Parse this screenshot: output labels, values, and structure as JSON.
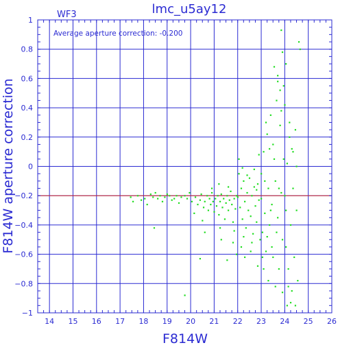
{
  "chart_data": {
    "type": "scatter",
    "title": "lmc_u5ay12",
    "corner_label": "WF3",
    "annotation": "Average aperture correction: -0.200",
    "xlabel": "F814W",
    "ylabel": "F814W aperture correction",
    "xlim": [
      13.5,
      26
    ],
    "ylim": [
      -1,
      1
    ],
    "x_ticks": [
      14,
      15,
      16,
      17,
      18,
      19,
      20,
      21,
      22,
      23,
      24,
      25,
      26
    ],
    "y_ticks": [
      -1,
      -0.8,
      -0.6,
      -0.4,
      -0.2,
      0,
      0.2,
      0.4,
      0.6,
      0.8,
      1
    ],
    "x_tick_labels": [
      "14",
      "15",
      "16",
      "17",
      "18",
      "19",
      "20",
      "21",
      "22",
      "23",
      "24",
      "25",
      "26"
    ],
    "y_tick_labels": [
      "−1",
      "−0.8",
      "−0.6",
      "−0.4",
      "−0.2",
      "0",
      "0.2",
      "0.4",
      "0.6",
      "0.8",
      "1"
    ],
    "grid": true,
    "reference_line": {
      "y": -0.2,
      "color": "#d22a2a"
    },
    "colors": {
      "axis": "#2a2ad2",
      "points": "#22dd22",
      "reference": "#d22a2a"
    },
    "series": [
      {
        "points": [
          [
            17.45,
            -0.21
          ],
          [
            17.55,
            -0.24
          ],
          [
            17.75,
            -0.2
          ],
          [
            17.9,
            -0.23
          ],
          [
            18.05,
            -0.22
          ],
          [
            18.15,
            -0.26
          ],
          [
            18.3,
            -0.19
          ],
          [
            18.4,
            -0.21
          ],
          [
            18.5,
            -0.18
          ],
          [
            18.6,
            -0.22
          ],
          [
            18.7,
            -0.2
          ],
          [
            18.8,
            -0.24
          ],
          [
            18.9,
            -0.21
          ],
          [
            19.0,
            -0.19
          ],
          [
            19.1,
            -0.2
          ],
          [
            19.2,
            -0.23
          ],
          [
            19.3,
            -0.22
          ],
          [
            19.4,
            -0.2
          ],
          [
            19.5,
            -0.25
          ],
          [
            19.6,
            -0.21
          ],
          [
            19.75,
            -0.2
          ],
          [
            19.85,
            -0.22
          ],
          [
            19.95,
            -0.18
          ],
          [
            20.05,
            -0.24
          ],
          [
            18.45,
            -0.42
          ],
          [
            19.75,
            -0.88
          ],
          [
            20.2,
            -0.21
          ],
          [
            20.3,
            -0.26
          ],
          [
            20.4,
            -0.23
          ],
          [
            20.45,
            -0.19
          ],
          [
            20.55,
            -0.28
          ],
          [
            20.6,
            -0.24
          ],
          [
            20.7,
            -0.2
          ],
          [
            20.75,
            -0.3
          ],
          [
            20.8,
            -0.22
          ],
          [
            20.85,
            -0.26
          ],
          [
            20.9,
            -0.18
          ],
          [
            20.95,
            -0.24
          ],
          [
            21.0,
            -0.31
          ],
          [
            21.05,
            -0.22
          ],
          [
            21.1,
            -0.27
          ],
          [
            21.15,
            -0.2
          ],
          [
            21.2,
            -0.33
          ],
          [
            21.25,
            -0.24
          ],
          [
            21.3,
            -0.19
          ],
          [
            21.35,
            -0.28
          ],
          [
            21.4,
            -0.22
          ],
          [
            21.45,
            -0.36
          ],
          [
            21.5,
            -0.25
          ],
          [
            21.55,
            -0.2
          ],
          [
            21.6,
            -0.3
          ],
          [
            21.65,
            -0.23
          ],
          [
            21.7,
            -0.17
          ],
          [
            21.75,
            -0.26
          ],
          [
            21.8,
            -0.38
          ],
          [
            21.85,
            -0.22
          ],
          [
            21.9,
            -0.29
          ],
          [
            21.95,
            -0.2
          ],
          [
            20.5,
            -0.37
          ],
          [
            20.6,
            -0.45
          ],
          [
            20.4,
            -0.63
          ],
          [
            20.15,
            -0.32
          ],
          [
            21.3,
            -0.5
          ],
          [
            21.8,
            -0.52
          ],
          [
            21.55,
            -0.64
          ],
          [
            21.25,
            -0.42
          ],
          [
            20.9,
            -0.15
          ],
          [
            21.2,
            -0.12
          ],
          [
            21.6,
            -0.14
          ],
          [
            21.95,
            -0.6
          ],
          [
            21.85,
            -0.44
          ],
          [
            22.0,
            -0.21
          ],
          [
            22.05,
            -0.05
          ],
          [
            22.1,
            -0.28
          ],
          [
            22.15,
            -0.15
          ],
          [
            22.2,
            -0.36
          ],
          [
            22.25,
            -0.1
          ],
          [
            22.3,
            -0.24
          ],
          [
            22.35,
            -0.42
          ],
          [
            22.4,
            -0.18
          ],
          [
            22.45,
            -0.3
          ],
          [
            22.5,
            -0.08
          ],
          [
            22.55,
            -0.34
          ],
          [
            22.6,
            -0.2
          ],
          [
            22.65,
            -0.46
          ],
          [
            22.7,
            -0.14
          ],
          [
            22.75,
            -0.27
          ],
          [
            22.8,
            -0.38
          ],
          [
            22.85,
            -0.12
          ],
          [
            22.9,
            -0.23
          ],
          [
            22.95,
            -0.5
          ],
          [
            22.05,
            0.05
          ],
          [
            22.15,
            -0.55
          ],
          [
            22.3,
            -0.62
          ],
          [
            22.4,
            -0.06
          ],
          [
            22.55,
            -0.58
          ],
          [
            22.7,
            -0.02
          ],
          [
            22.85,
            -0.68
          ],
          [
            22.9,
            0.08
          ],
          [
            22.25,
            -0.48
          ],
          [
            22.6,
            -0.52
          ],
          [
            22.8,
            -0.16
          ],
          [
            22.2,
            -0.01
          ],
          [
            23.0,
            -0.22
          ],
          [
            23.05,
            -0.45
          ],
          [
            23.1,
            0.1
          ],
          [
            23.15,
            -0.32
          ],
          [
            23.2,
            -0.58
          ],
          [
            23.25,
            0.22
          ],
          [
            23.3,
            -0.15
          ],
          [
            23.35,
            -0.4
          ],
          [
            23.4,
            0.35
          ],
          [
            23.45,
            -0.26
          ],
          [
            23.5,
            -0.62
          ],
          [
            23.55,
            0.05
          ],
          [
            23.6,
            -0.1
          ],
          [
            23.65,
            0.45
          ],
          [
            23.7,
            -0.35
          ],
          [
            23.75,
            -0.7
          ],
          [
            23.8,
            0.28
          ],
          [
            23.85,
            -0.18
          ],
          [
            23.9,
            -0.5
          ],
          [
            23.95,
            0.55
          ],
          [
            23.0,
            -0.05
          ],
          [
            23.1,
            -0.7
          ],
          [
            23.2,
            0.3
          ],
          [
            23.3,
            -0.78
          ],
          [
            23.4,
            -0.3
          ],
          [
            23.5,
            0.15
          ],
          [
            23.6,
            -0.82
          ],
          [
            23.7,
            0.62
          ],
          [
            23.75,
            -0.15
          ],
          [
            23.85,
            0.38
          ],
          [
            23.9,
            -0.86
          ],
          [
            23.95,
            0.05
          ],
          [
            23.55,
            0.68
          ],
          [
            23.8,
            0.52
          ],
          [
            23.65,
            -0.45
          ],
          [
            23.45,
            -0.55
          ],
          [
            23.25,
            -0.48
          ],
          [
            23.15,
            -0.1
          ],
          [
            23.05,
            -0.62
          ],
          [
            23.35,
            0.12
          ],
          [
            24.0,
            -0.2
          ],
          [
            24.05,
            -0.55
          ],
          [
            24.1,
            0.02
          ],
          [
            24.15,
            -0.7
          ],
          [
            24.2,
            0.2
          ],
          [
            24.25,
            -0.4
          ],
          [
            24.3,
            -0.85
          ],
          [
            24.35,
            0.1
          ],
          [
            24.4,
            -0.62
          ],
          [
            24.45,
            0.25
          ],
          [
            24.5,
            -0.3
          ],
          [
            24.55,
            -0.78
          ],
          [
            24.6,
            0.85
          ],
          [
            24.65,
            0.8
          ],
          [
            24.0,
            0.42
          ],
          [
            24.1,
            -0.95
          ],
          [
            24.25,
            -0.93
          ],
          [
            24.45,
            -0.95
          ],
          [
            24.2,
            0.3
          ],
          [
            24.35,
            -0.15
          ],
          [
            24.5,
            0.0
          ],
          [
            24.05,
            -0.3
          ],
          [
            24.3,
            0.12
          ],
          [
            24.15,
            -0.82
          ],
          [
            23.85,
            0.93
          ],
          [
            23.9,
            0.78
          ],
          [
            24.05,
            0.7
          ],
          [
            23.7,
            0.58
          ]
        ]
      }
    ]
  }
}
